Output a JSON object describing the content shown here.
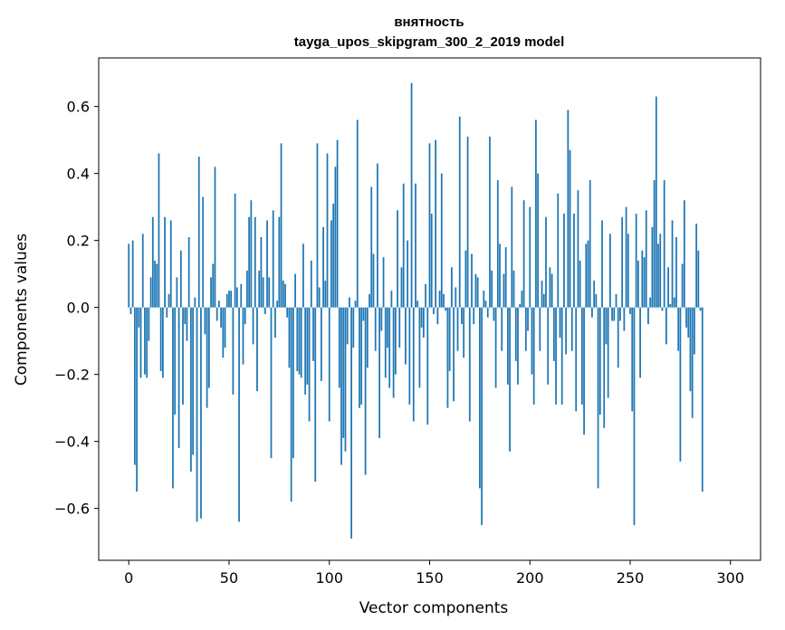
{
  "chart_data": {
    "type": "bar",
    "title": "внятность",
    "subtitle": "tayga_upos_skipgram_300_2_2019 model",
    "xlabel": "Vector components",
    "ylabel": "Components values",
    "xlim": [
      -15,
      315
    ],
    "ylim": [
      -0.755,
      0.745
    ],
    "xticks": [
      0,
      50,
      100,
      150,
      200,
      250,
      300
    ],
    "xtick_labels": [
      "0",
      "50",
      "100",
      "150",
      "200",
      "250",
      "300"
    ],
    "yticks": [
      -0.6,
      -0.4,
      -0.2,
      0.0,
      0.2,
      0.4,
      0.6
    ],
    "ytick_labels": [
      "−0.6",
      "−0.4",
      "−0.2",
      "0.0",
      "0.2",
      "0.4",
      "0.6"
    ],
    "grid": false,
    "bar_color": "#1f77b4",
    "x": "0..299 (component index)",
    "values": [
      0.19,
      -0.02,
      0.2,
      -0.47,
      -0.55,
      -0.06,
      -0.21,
      0.22,
      -0.2,
      -0.21,
      -0.1,
      0.09,
      0.27,
      0.14,
      0.13,
      0.46,
      -0.19,
      -0.21,
      0.27,
      -0.03,
      0.04,
      0.26,
      -0.54,
      -0.32,
      0.09,
      -0.42,
      0.17,
      -0.29,
      -0.05,
      -0.1,
      0.21,
      -0.49,
      -0.44,
      0.03,
      -0.64,
      0.45,
      -0.63,
      0.33,
      -0.08,
      -0.3,
      -0.24,
      0.09,
      0.13,
      0.42,
      -0.04,
      0.02,
      -0.06,
      -0.15,
      -0.12,
      0.04,
      0.05,
      0.05,
      -0.26,
      0.34,
      0.06,
      -0.64,
      0.07,
      -0.17,
      -0.05,
      0.11,
      0.27,
      0.32,
      -0.11,
      0.27,
      -0.25,
      0.11,
      0.21,
      0.09,
      -0.02,
      0.26,
      0.09,
      -0.45,
      0.29,
      -0.09,
      0.02,
      0.27,
      0.49,
      0.08,
      0.07,
      -0.03,
      -0.18,
      -0.58,
      -0.45,
      0.1,
      -0.19,
      -0.2,
      -0.21,
      0.19,
      -0.26,
      -0.23,
      -0.34,
      0.14,
      -0.16,
      -0.52,
      0.49,
      0.06,
      -0.22,
      0.24,
      0.08,
      0.46,
      -0.34,
      0.26,
      0.31,
      0.42,
      0.5,
      -0.24,
      -0.47,
      -0.39,
      -0.43,
      -0.11,
      0.03,
      -0.69,
      -0.12,
      0.02,
      0.56,
      -0.3,
      -0.29,
      -0.04,
      -0.5,
      -0.18,
      0.04,
      0.36,
      0.16,
      -0.13,
      0.43,
      -0.39,
      -0.07,
      0.15,
      -0.21,
      -0.12,
      -0.24,
      0.05,
      -0.27,
      -0.2,
      0.29,
      -0.12,
      0.12,
      0.37,
      -0.17,
      0.2,
      -0.29,
      0.67,
      -0.34,
      0.37,
      0.02,
      -0.24,
      -0.06,
      -0.09,
      0.07,
      -0.35,
      0.49,
      0.28,
      -0.02,
      0.5,
      -0.05,
      0.05,
      0.4,
      0.04,
      -0.01,
      -0.3,
      -0.19,
      0.12,
      -0.28,
      0.06,
      -0.13,
      0.57,
      -0.05,
      -0.15,
      0.17,
      0.51,
      -0.34,
      0.16,
      -0.05,
      0.1,
      0.09,
      -0.54,
      -0.65,
      0.05,
      0.02,
      -0.03,
      0.51,
      0.11,
      -0.04,
      -0.24,
      0.38,
      0.19,
      -0.13,
      0.1,
      0.18,
      -0.23,
      -0.43,
      0.36,
      0.11,
      -0.16,
      -0.23,
      0.01,
      0.05,
      0.32,
      -0.13,
      -0.07,
      0.3,
      -0.2,
      -0.29,
      0.56,
      0.4,
      -0.13,
      0.08,
      0.04,
      0.27,
      -0.23,
      0.12,
      0.1,
      -0.16,
      -0.29,
      0.34,
      -0.09,
      -0.29,
      0.28,
      -0.14,
      0.59,
      0.47,
      -0.13,
      0.28,
      -0.31,
      0.35,
      0.14,
      -0.29,
      -0.38,
      0.19,
      0.2,
      0.38,
      -0.03,
      0.08,
      0.04,
      -0.54,
      -0.32,
      0.26,
      -0.36,
      -0.11,
      -0.27,
      0.22,
      -0.04,
      -0.04,
      0.04,
      -0.18,
      -0.04,
      0.27,
      -0.07,
      0.3,
      0.22,
      -0.02,
      -0.31,
      -0.65,
      0.28,
      0.14,
      -0.21,
      0.17,
      0.15,
      0.29,
      -0.05,
      0.03,
      0.24,
      0.38,
      0.63,
      0.19,
      0.22,
      -0.01,
      0.38,
      -0.11,
      0.12,
      0.01,
      0.26,
      0.03,
      0.21,
      -0.13,
      -0.46,
      0.13,
      0.32,
      -0.06,
      -0.09,
      -0.25,
      -0.33,
      -0.14,
      0.25,
      0.17,
      -0.01,
      -0.55
    ]
  }
}
